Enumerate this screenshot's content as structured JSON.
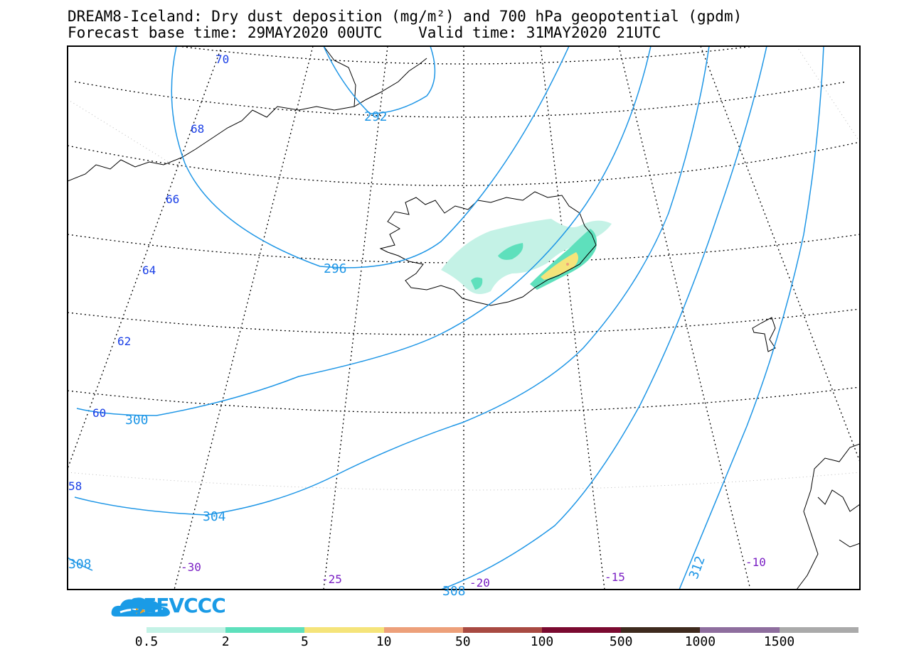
{
  "header": {
    "title_line1": "DREAM8-Iceland: Dry dust deposition (mg/m²) and 700 hPa geopotential (gpdm)",
    "title_line2": "Forecast base time: 29MAY2020 00UTC    Valid time: 31MAY2020 21UTC"
  },
  "map": {
    "latitude_labels": [
      "70",
      "68",
      "66",
      "64",
      "62",
      "60",
      "58"
    ],
    "longitude_labels": [
      "-30",
      "-25",
      "-20",
      "-15",
      "-10"
    ],
    "contour_labels": [
      "292",
      "296",
      "300",
      "304",
      "308",
      "308",
      "312"
    ],
    "colors": {
      "contour": "#1e96e6",
      "lat_label": "#1a3fe6",
      "lon_label": "#7a1fc4",
      "frame": "#000000"
    }
  },
  "logo": {
    "text": "SEEVCCC"
  },
  "colorbar": {
    "labels": [
      "0.5",
      "2",
      "5",
      "10",
      "50",
      "100",
      "500",
      "1000",
      "1500"
    ],
    "colors": [
      "#c4f2e6",
      "#5ee0bc",
      "#f5e47a",
      "#eda07a",
      "#a84a42",
      "#7a0a30",
      "#3e2a1e",
      "#8e6e9e",
      "#aaaaaa"
    ]
  }
}
